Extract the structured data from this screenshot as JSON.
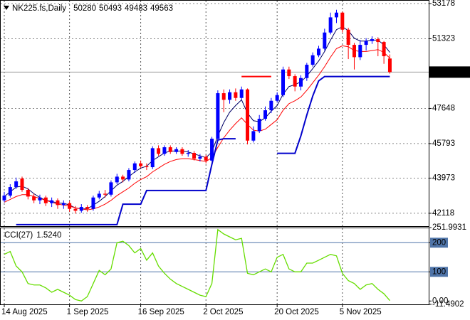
{
  "chart_data": [
    {
      "type": "candlestick",
      "title": "NK225.fs,Daily",
      "open": [
        42800,
        43050,
        43500,
        43950,
        43350,
        43000,
        42800,
        42950,
        42650,
        42800,
        42550,
        42650,
        42350,
        42250,
        42450,
        42350,
        42950,
        43150,
        43100,
        43750,
        44050,
        43900,
        44400,
        44750,
        44600,
        44550,
        45550,
        45250,
        45600,
        45350,
        45500,
        45250,
        45300,
        45000,
        45100,
        44900,
        46050,
        48450,
        48100,
        48500,
        48200,
        48650,
        45950,
        46450,
        47100,
        47550,
        48050,
        48350,
        49700,
        49350,
        48800,
        49250,
        49950,
        50450,
        50800,
        51650,
        52450,
        52700,
        51800,
        51000,
        50350,
        51000,
        51200,
        51300,
        51150,
        50280
      ],
      "high": [
        43250,
        43650,
        44000,
        44050,
        43450,
        43150,
        43100,
        43050,
        42950,
        42900,
        42800,
        42750,
        42500,
        42600,
        42550,
        43050,
        43300,
        43350,
        43850,
        44200,
        44150,
        44500,
        44850,
        44900,
        44750,
        45650,
        45700,
        45700,
        45700,
        45600,
        45600,
        45450,
        45400,
        45250,
        45200,
        46150,
        48600,
        48650,
        48650,
        48700,
        48800,
        48700,
        46700,
        47300,
        47750,
        48200,
        48500,
        49850,
        49850,
        49450,
        49400,
        50050,
        50600,
        50950,
        51850,
        52700,
        52850,
        52750,
        51900,
        51100,
        51250,
        51350,
        51450,
        51400,
        51200,
        50493
      ],
      "low": [
        42700,
        42950,
        43400,
        43250,
        42850,
        42650,
        42600,
        42500,
        42450,
        42350,
        42350,
        42200,
        42100,
        42150,
        42200,
        42250,
        42850,
        42950,
        43000,
        43650,
        43750,
        43800,
        44250,
        44500,
        44400,
        44450,
        45150,
        45150,
        45250,
        45250,
        45150,
        45100,
        44900,
        44850,
        44750,
        44850,
        46000,
        47450,
        47900,
        48050,
        48100,
        45750,
        45850,
        46350,
        47000,
        47400,
        47950,
        48250,
        49200,
        48550,
        48600,
        49100,
        49850,
        50350,
        50700,
        51550,
        52150,
        51650,
        50250,
        49700,
        50200,
        50700,
        51050,
        50400,
        50000,
        49483
      ],
      "close": [
        43050,
        43500,
        43800,
        43350,
        43000,
        42800,
        42950,
        42650,
        42800,
        42550,
        42650,
        42350,
        42250,
        42450,
        42350,
        42950,
        43150,
        43100,
        43750,
        44050,
        43900,
        44400,
        44750,
        44600,
        44550,
        45550,
        45250,
        45600,
        45350,
        45500,
        45250,
        45300,
        45000,
        45100,
        44900,
        46050,
        48450,
        48100,
        48500,
        48200,
        48650,
        45950,
        46450,
        47100,
        47550,
        48050,
        48350,
        49700,
        49350,
        48800,
        49250,
        49950,
        50450,
        50800,
        51650,
        52450,
        52700,
        51800,
        51000,
        50350,
        51000,
        51200,
        51300,
        51150,
        50400,
        49563
      ],
      "up_color": "#0000ff",
      "down_color": "#ff0000",
      "lines": [
        {
          "color": "#000066",
          "values": [
            43000,
            43250,
            43500,
            43550,
            43400,
            43150,
            42950,
            42800,
            42750,
            42650,
            42650,
            42550,
            42400,
            42350,
            42350,
            42550,
            42750,
            43000,
            43300,
            43600,
            43800,
            44050,
            44300,
            44500,
            44600,
            44900,
            45100,
            45300,
            45400,
            45400,
            45400,
            45350,
            45250,
            45150,
            45050,
            45350,
            46200,
            46900,
            47450,
            47800,
            48100,
            47400,
            47000,
            46950,
            47150,
            47500,
            47800,
            48400,
            48800,
            48900,
            49050,
            49350,
            49750,
            50150,
            50650,
            51250,
            51800,
            51950,
            51750,
            51350,
            51200,
            51200,
            51250,
            51250,
            51000,
            50600
          ]
        },
        {
          "color": "#ff0000",
          "values": [
            42700,
            42850,
            43000,
            43100,
            43100,
            43000,
            42900,
            42800,
            42700,
            42600,
            42550,
            42500,
            42400,
            42350,
            42300,
            42350,
            42450,
            42600,
            42800,
            43050,
            43250,
            43450,
            43700,
            43900,
            44050,
            44300,
            44500,
            44700,
            44850,
            44950,
            45000,
            45000,
            44950,
            44900,
            44850,
            45050,
            45600,
            46100,
            46500,
            46850,
            47150,
            46800,
            46500,
            46450,
            46550,
            46800,
            47050,
            47550,
            47900,
            48050,
            48250,
            48600,
            49000,
            49400,
            49850,
            50350,
            50800,
            50950,
            50900,
            50700,
            50650,
            50650,
            50700,
            50750,
            50600,
            50300
          ]
        },
        {
          "color": "#0000cc",
          "width": 2,
          "values": [
            null,
            null,
            41520,
            41520,
            41520,
            41520,
            41520,
            41520,
            41520,
            41520,
            41520,
            41520,
            41520,
            41520,
            41520,
            41520,
            41520,
            41520,
            41520,
            41520,
            42600,
            42600,
            42600,
            42600,
            43320,
            43320,
            43320,
            43320,
            43320,
            43320,
            43320,
            43320,
            43320,
            43320,
            43320,
            44700,
            45980,
            46050,
            46050,
            46050,
            null,
            null,
            null,
            null,
            null,
            null,
            45280,
            45280,
            45280,
            45280,
            46200,
            47300,
            48300,
            49100,
            49330,
            49330,
            49330,
            49330,
            49330,
            49330,
            49330,
            49330,
            49330,
            49330,
            49330,
            49330
          ]
        },
        {
          "color": "#ff0000",
          "width": 2,
          "values": [
            null,
            null,
            null,
            null,
            null,
            null,
            null,
            null,
            null,
            null,
            null,
            null,
            null,
            null,
            null,
            null,
            null,
            null,
            null,
            null,
            null,
            null,
            null,
            null,
            null,
            null,
            null,
            null,
            null,
            null,
            null,
            null,
            null,
            null,
            null,
            null,
            null,
            null,
            null,
            null,
            49330,
            49330,
            49330,
            49330,
            49330,
            49330,
            null,
            null,
            null,
            null,
            null,
            null,
            null,
            null,
            null,
            null,
            null,
            null,
            null,
            null,
            null,
            null,
            null,
            null,
            null,
            null
          ]
        }
      ],
      "xticks": [
        {
          "value": 0,
          "label": "14 Aug 2025"
        },
        {
          "value": 11,
          "label": "1 Sep 2025"
        },
        {
          "value": 23,
          "label": "16 Sep 2025"
        },
        {
          "value": 34,
          "label": "2 Oct 2025"
        },
        {
          "value": 46,
          "label": "20 Oct 2025"
        },
        {
          "value": 57,
          "label": "5 Nov 2025"
        }
      ],
      "ylim": [
        41440,
        53365
      ],
      "yticks": [
        53178,
        51323,
        47648,
        45793,
        43973,
        42118
      ],
      "grid": true
    },
    {
      "type": "line",
      "title": "CCI(27)",
      "value_label": "1.5240",
      "color": "#66dd00",
      "values": [
        160,
        170,
        120,
        100,
        60,
        55,
        55,
        45,
        30,
        40,
        30,
        20,
        5,
        0,
        15,
        60,
        105,
        90,
        110,
        200,
        205,
        190,
        165,
        180,
        140,
        165,
        120,
        95,
        75,
        60,
        50,
        40,
        30,
        20,
        15,
        60,
        245,
        230,
        220,
        210,
        215,
        95,
        90,
        100,
        110,
        100,
        150,
        160,
        110,
        100,
        100,
        130,
        130,
        140,
        150,
        160,
        155,
        95,
        70,
        60,
        40,
        55,
        60,
        40,
        25,
        1.524
      ],
      "ylim": [
        -11.4902,
        251.9931
      ],
      "yticks": [
        251.9931,
        200,
        100,
        {
          "value": 0,
          "label": "0.00"
        },
        -11.4902
      ],
      "levels": [
        200,
        100
      ],
      "level_color": "#4f74a8"
    }
  ]
}
